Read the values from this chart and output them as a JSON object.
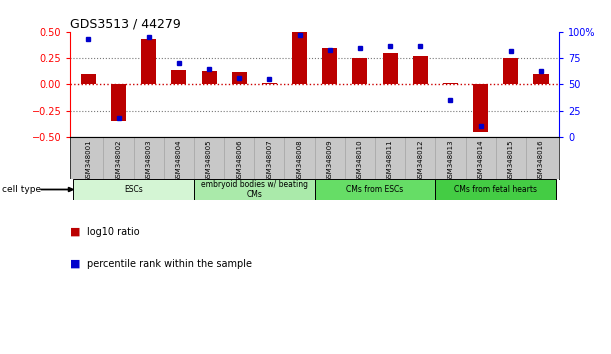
{
  "title": "GDS3513 / 44279",
  "samples": [
    "GSM348001",
    "GSM348002",
    "GSM348003",
    "GSM348004",
    "GSM348005",
    "GSM348006",
    "GSM348007",
    "GSM348008",
    "GSM348009",
    "GSM348010",
    "GSM348011",
    "GSM348012",
    "GSM348013",
    "GSM348014",
    "GSM348015",
    "GSM348016"
  ],
  "log10_ratio": [
    0.1,
    -0.35,
    0.43,
    0.14,
    0.13,
    0.12,
    0.01,
    0.5,
    0.35,
    0.25,
    0.3,
    0.27,
    0.01,
    -0.45,
    0.25,
    0.1
  ],
  "percentile_rank": [
    93,
    18,
    95,
    70,
    65,
    56,
    55,
    97,
    83,
    85,
    87,
    87,
    35,
    10,
    82,
    63
  ],
  "cell_type_groups": [
    {
      "label": "ESCs",
      "start": 0,
      "end": 3,
      "color": "#d4f5d4"
    },
    {
      "label": "embryoid bodies w/ beating\nCMs",
      "start": 4,
      "end": 7,
      "color": "#aaeaaa"
    },
    {
      "label": "CMs from ESCs",
      "start": 8,
      "end": 11,
      "color": "#66dd66"
    },
    {
      "label": "CMs from fetal hearts",
      "start": 12,
      "end": 15,
      "color": "#44cc44"
    }
  ],
  "bar_color": "#bb0000",
  "dot_color": "#0000cc",
  "zero_line_color": "#cc0000",
  "dotted_line_color": "#777777",
  "ylim_left": [
    -0.5,
    0.5
  ],
  "ylim_right": [
    0,
    100
  ],
  "yticks_left": [
    -0.5,
    -0.25,
    0,
    0.25,
    0.5
  ],
  "yticks_right": [
    0,
    25,
    50,
    75,
    100
  ],
  "background_color": "#ffffff",
  "header_row_color": "#c8c8c8",
  "cell_type_label": "cell type"
}
